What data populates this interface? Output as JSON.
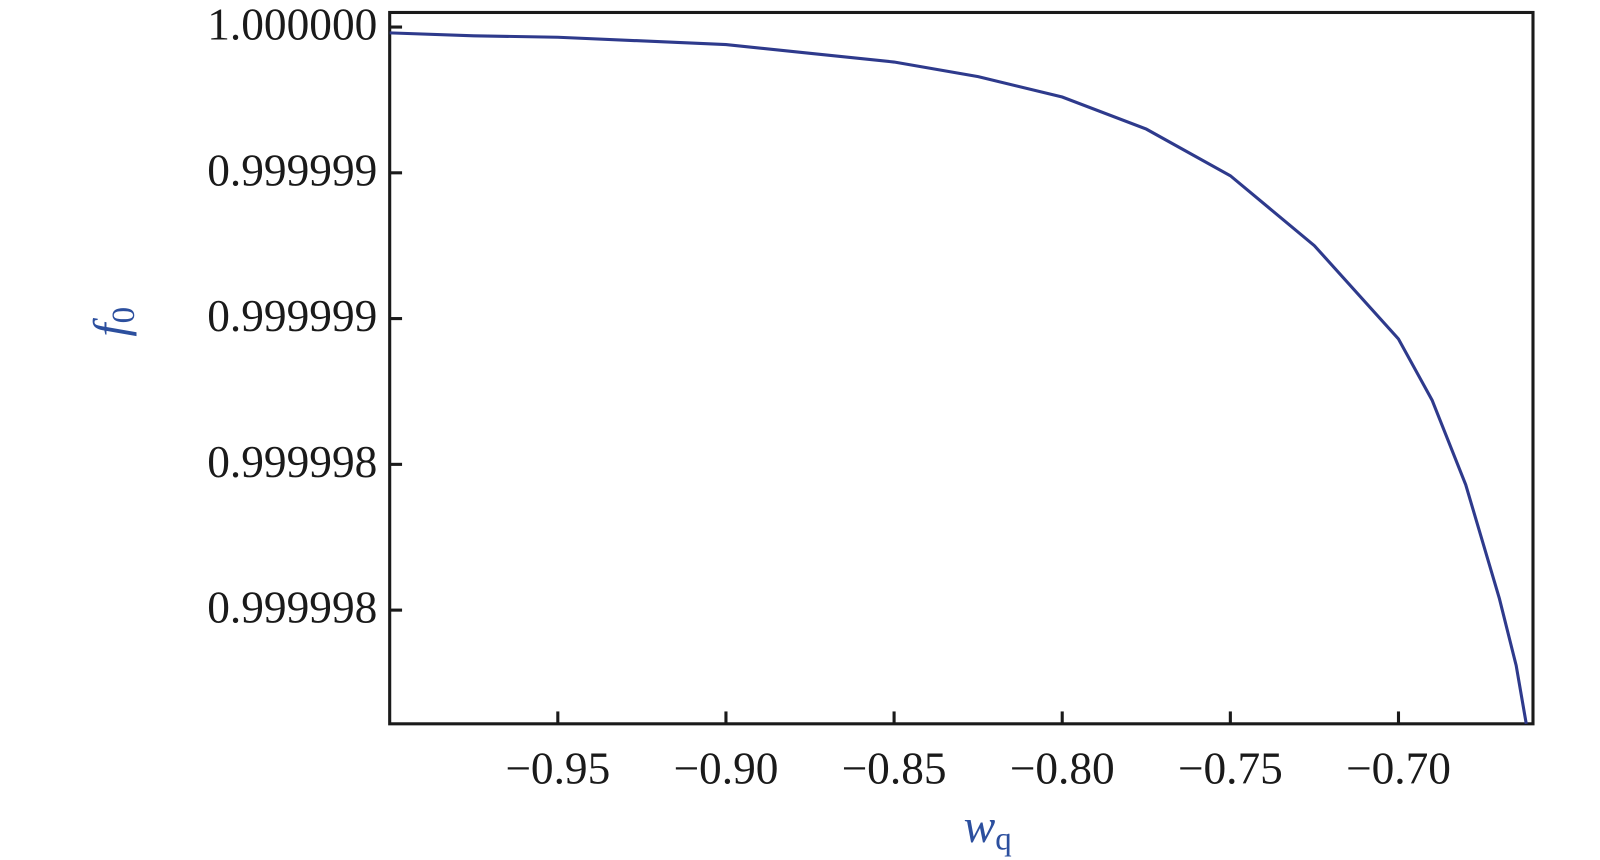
{
  "chart_data": {
    "type": "line",
    "xlabel": "w",
    "xlabel_sub": "q",
    "ylabel": "f",
    "ylabel_sub": "0",
    "x": [
      -1.0,
      -0.975,
      -0.95,
      -0.9,
      -0.875,
      -0.85,
      -0.825,
      -0.8,
      -0.775,
      -0.75,
      -0.725,
      -0.7,
      -0.69,
      -0.68,
      -0.67,
      -0.665,
      -0.662
    ],
    "series": [
      {
        "name": "f0",
        "color": "#2e3a8c",
        "values": [
          0.99999998,
          0.99999997,
          0.999999965,
          0.99999994,
          0.99999991,
          0.99999988,
          0.99999983,
          0.99999976,
          0.99999965,
          0.99999949,
          0.99999925,
          0.99999893,
          0.99999872,
          0.99999843,
          0.99999804,
          0.99999781,
          0.99999761
        ]
      }
    ],
    "xlim": [
      -1.0,
      -0.66
    ],
    "ylim": [
      0.99999761,
      1.00000005
    ],
    "xticks": [
      {
        "value": -0.95,
        "label": "−0.95"
      },
      {
        "value": -0.9,
        "label": "−0.90"
      },
      {
        "value": -0.85,
        "label": "−0.85"
      },
      {
        "value": -0.8,
        "label": "−0.80"
      },
      {
        "value": -0.75,
        "label": "−0.75"
      },
      {
        "value": -0.7,
        "label": "−0.70"
      }
    ],
    "yticks": [
      {
        "value": 1.0,
        "label": "1.000000"
      },
      {
        "value": 0.9999995,
        "label": "0.999999"
      },
      {
        "value": 0.999999,
        "label": "0.999999"
      },
      {
        "value": 0.9999985,
        "label": "0.999998"
      },
      {
        "value": 0.999998,
        "label": "0.999998"
      }
    ],
    "grid": false
  }
}
